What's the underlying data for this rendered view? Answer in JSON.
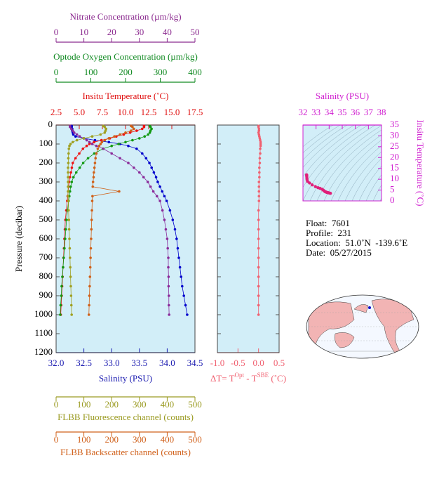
{
  "chart_data": [
    {
      "type": "profile",
      "y_label": "Pressure (decibar)",
      "ylim": [
        0,
        1200
      ],
      "invert_y": true,
      "yticks": [
        0,
        100,
        200,
        300,
        400,
        500,
        600,
        700,
        800,
        900,
        1000,
        1100,
        1200
      ],
      "ytick_side": "left",
      "ytick_labels": true,
      "background": "#d2eef8",
      "xaxes": [
        {
          "title": "Insitu Temperature (˚C)",
          "side": "top",
          "color": "#e01010",
          "xlim": [
            2.5,
            17.5
          ],
          "xticks": [
            2.5,
            {
              "value": 5,
              "label": "5.0"
            },
            7.5,
            {
              "value": 10,
              "label": "10.0"
            },
            12.5,
            {
              "value": 15,
              "label": "15.0"
            },
            17.5
          ]
        },
        {
          "title": "Optode Oxygen Concentration (µm/kg)",
          "side": "top",
          "color": "#118a22",
          "xlim": [
            0,
            400
          ],
          "xticks": [
            0,
            100,
            200,
            300,
            400
          ]
        },
        {
          "title": "Nitrate Concentration (µm/kg)",
          "side": "top",
          "color": "#8b2a8f",
          "xlim": [
            0,
            50
          ],
          "xticks": [
            0,
            10,
            20,
            30,
            40,
            50
          ]
        },
        {
          "title": "Salinity (PSU)",
          "side": "bottom",
          "color": "#1a1ab0",
          "xlim": [
            32,
            34.5
          ],
          "xticks": [
            {
              "value": 32,
              "label": "32.0"
            },
            32.5,
            {
              "value": 33,
              "label": "33.0"
            },
            33.5,
            {
              "value": 34,
              "label": "34.0"
            },
            34.5
          ]
        },
        {
          "title": "FLBB Fluorescence channel (counts)",
          "side": "bottom",
          "color": "#9a9a20",
          "xlim": [
            0,
            500
          ],
          "xticks": [
            0,
            100,
            200,
            300,
            400,
            500
          ]
        },
        {
          "title": "FLBB Backscatter channel (counts)",
          "side": "bottom",
          "color": "#d0601a",
          "xlim": [
            0,
            500
          ],
          "xticks": [
            0,
            100,
            200,
            300,
            400,
            500
          ]
        }
      ],
      "series": [
        {
          "axis": 3,
          "color": "#0000cc",
          "x": [
            32.28,
            32.28,
            32.29,
            32.29,
            32.3,
            32.31,
            32.35,
            32.5,
            32.7,
            32.95,
            33.15,
            33.3,
            33.45,
            33.55,
            33.62,
            33.68,
            33.72,
            33.76,
            33.8,
            33.83,
            33.87,
            33.91,
            33.95,
            33.99,
            34.05,
            34.1,
            34.14,
            34.17,
            34.19,
            34.21,
            34.23,
            34.25,
            34.27,
            34.3,
            34.33,
            34.36
          ],
          "values": [
            5,
            10,
            20,
            30,
            40,
            50,
            60,
            70,
            80,
            90,
            100,
            110,
            125,
            150,
            175,
            200,
            225,
            250,
            275,
            300,
            325,
            350,
            375,
            400,
            450,
            500,
            550,
            600,
            650,
            700,
            750,
            800,
            850,
            900,
            950,
            1000
          ]
        },
        {
          "axis": 0,
          "color": "#ee1111",
          "x": [
            12.0,
            12.0,
            11.8,
            11.2,
            10.5,
            9.8,
            9.0,
            8.3,
            7.4,
            6.6,
            6.1,
            5.8,
            5.4,
            5.0,
            4.6,
            4.3,
            4.2,
            4.1,
            4.0,
            3.9,
            3.85,
            3.8,
            3.75,
            3.7,
            3.6,
            3.5,
            3.45,
            3.4,
            3.35,
            3.3,
            3.25,
            3.2,
            3.15,
            3.1,
            3.05,
            3.0
          ],
          "values": [
            5,
            10,
            20,
            30,
            40,
            50,
            60,
            70,
            80,
            90,
            100,
            110,
            125,
            150,
            175,
            200,
            225,
            250,
            275,
            300,
            325,
            350,
            375,
            400,
            450,
            500,
            550,
            600,
            650,
            700,
            750,
            800,
            850,
            900,
            950,
            1000
          ]
        },
        {
          "axis": 1,
          "color": "#119911",
          "x": [
            270,
            272,
            275,
            272,
            270,
            265,
            255,
            240,
            220,
            200,
            180,
            160,
            135,
            110,
            92,
            78,
            68,
            58,
            50,
            45,
            42,
            40,
            38,
            36,
            33,
            30,
            28,
            26,
            24,
            22,
            20,
            18,
            16,
            15,
            13,
            12
          ],
          "values": [
            5,
            10,
            20,
            30,
            40,
            50,
            60,
            70,
            80,
            90,
            100,
            110,
            125,
            150,
            175,
            200,
            225,
            250,
            275,
            300,
            325,
            350,
            375,
            400,
            450,
            500,
            550,
            600,
            650,
            700,
            750,
            800,
            850,
            900,
            950,
            1000
          ]
        },
        {
          "axis": 2,
          "color": "#8a2a9a",
          "x": [
            5,
            5,
            5.5,
            6,
            6.5,
            7.5,
            8.5,
            10,
            11,
            12,
            13,
            14.5,
            17,
            20,
            23,
            26,
            28,
            30,
            31.5,
            33,
            34,
            35,
            36.3,
            37.4,
            38.3,
            39,
            39.5,
            40,
            40.2,
            40.4,
            40.4,
            40.5,
            40.5,
            40.6,
            40.6,
            40.7
          ],
          "values": [
            5,
            10,
            20,
            30,
            40,
            50,
            60,
            70,
            80,
            90,
            100,
            110,
            125,
            150,
            175,
            200,
            225,
            250,
            275,
            300,
            325,
            350,
            375,
            400,
            450,
            500,
            550,
            600,
            650,
            700,
            750,
            800,
            850,
            900,
            950,
            1000
          ]
        },
        {
          "axis": 4,
          "color": "#a0a020",
          "x": [
            170,
            175,
            180,
            178,
            175,
            160,
            130,
            100,
            75,
            60,
            52,
            48,
            46,
            45,
            44,
            44,
            43,
            43,
            43,
            43,
            43,
            43,
            43,
            44,
            45,
            46,
            47,
            48,
            49,
            50,
            51,
            52,
            53,
            54,
            55,
            56
          ],
          "values": [
            5,
            10,
            20,
            30,
            40,
            50,
            60,
            70,
            80,
            90,
            100,
            110,
            125,
            150,
            175,
            200,
            225,
            250,
            275,
            300,
            325,
            350,
            375,
            400,
            450,
            500,
            550,
            600,
            650,
            700,
            750,
            800,
            850,
            900,
            950,
            1000
          ]
        },
        {
          "axis": 5,
          "color": "#d06018",
          "x": [
            270,
            275,
            280,
            270,
            250,
            230,
            210,
            190,
            175,
            165,
            160,
            155,
            150,
            145,
            142,
            140,
            138,
            136,
            135,
            133,
            132,
            227,
            131,
            130,
            129,
            128,
            127,
            126,
            125,
            124,
            123,
            122,
            121,
            120,
            119,
            118
          ],
          "values": [
            5,
            10,
            20,
            30,
            40,
            50,
            60,
            70,
            80,
            90,
            100,
            110,
            125,
            150,
            175,
            200,
            225,
            250,
            275,
            300,
            325,
            350,
            375,
            400,
            450,
            500,
            550,
            600,
            650,
            700,
            750,
            800,
            850,
            900,
            950,
            1000
          ]
        }
      ]
    },
    {
      "type": "profile",
      "ylim": [
        0,
        1200
      ],
      "invert_y": true,
      "yticks": [
        0,
        100,
        200,
        300,
        400,
        500,
        600,
        700,
        800,
        900,
        1000,
        1100,
        1200
      ],
      "ytick_side": "both",
      "ytick_labels": false,
      "background": "#d2eef8",
      "xaxes": [
        {
          "title_parts": [
            "ΔT= T",
            "Opt",
            " - T",
            "SBE",
            " (˚C)"
          ],
          "side": "bottom",
          "color": "#f06070",
          "xlim": [
            -1,
            0.5
          ],
          "xticks": [
            {
              "value": -1,
              "label": "-1.0"
            },
            -0.5,
            {
              "value": 0,
              "label": "0.0"
            },
            0.5
          ]
        }
      ],
      "series": [
        {
          "axis": 0,
          "color": "#f06070",
          "x": [
            0.0,
            0.0,
            0.01,
            0.01,
            0.0,
            0.01,
            0.02,
            0.03,
            0.04,
            0.05,
            0.05,
            0.05,
            0.04,
            0.04,
            0.03,
            0.03,
            0.02,
            0.02,
            0.02,
            0.01,
            0.01,
            0.01,
            0.01,
            0.01,
            0.0,
            0.0,
            0.0,
            0.0,
            0.0,
            0.0,
            0.0,
            0.0,
            0.0,
            0.0,
            0.0,
            0.0
          ],
          "values": [
            5,
            10,
            20,
            30,
            40,
            50,
            60,
            70,
            80,
            90,
            100,
            110,
            125,
            150,
            175,
            200,
            225,
            250,
            275,
            300,
            325,
            350,
            375,
            400,
            450,
            500,
            550,
            600,
            650,
            700,
            750,
            800,
            850,
            900,
            950,
            1000
          ]
        }
      ]
    },
    {
      "type": "ts",
      "y_label": "Insitu Temperature (˚C)",
      "ylim": [
        0,
        35
      ],
      "invert_y": false,
      "yticks": [
        0,
        5,
        10,
        15,
        20,
        25,
        30,
        35
      ],
      "ytick_side": "right",
      "ytick_labels": true,
      "background": "#d2eef8",
      "xaxes": [
        {
          "title": "Salinity (PSU)",
          "side": "top",
          "color": "#d020d0",
          "xlim": [
            32,
            38
          ],
          "xticks": [
            32,
            33,
            34,
            35,
            36,
            37,
            38
          ]
        }
      ],
      "series": [
        {
          "axis": 0,
          "color": "#e0207a",
          "x": [
            32.28,
            32.28,
            32.29,
            32.29,
            32.3,
            32.31,
            32.35,
            32.5,
            32.7,
            32.95,
            33.15,
            33.3,
            33.45,
            33.55,
            33.62,
            33.68,
            33.72,
            33.76,
            33.8,
            33.83,
            33.87,
            33.91,
            33.95,
            33.99,
            34.05,
            34.1
          ],
          "values": [
            12.0,
            12.0,
            11.8,
            11.2,
            10.5,
            9.8,
            9.0,
            8.3,
            7.4,
            6.6,
            6.1,
            5.8,
            5.4,
            5.0,
            4.6,
            4.3,
            4.2,
            4.1,
            4.0,
            3.9,
            3.85,
            3.8,
            3.75,
            3.7,
            3.6,
            3.5
          ]
        }
      ]
    }
  ],
  "info": {
    "lines": [
      "Float:  7601",
      "Profile:  231",
      "Location:  51.0˚N  -139.6˚E",
      "Date:  05/27/2015"
    ]
  }
}
